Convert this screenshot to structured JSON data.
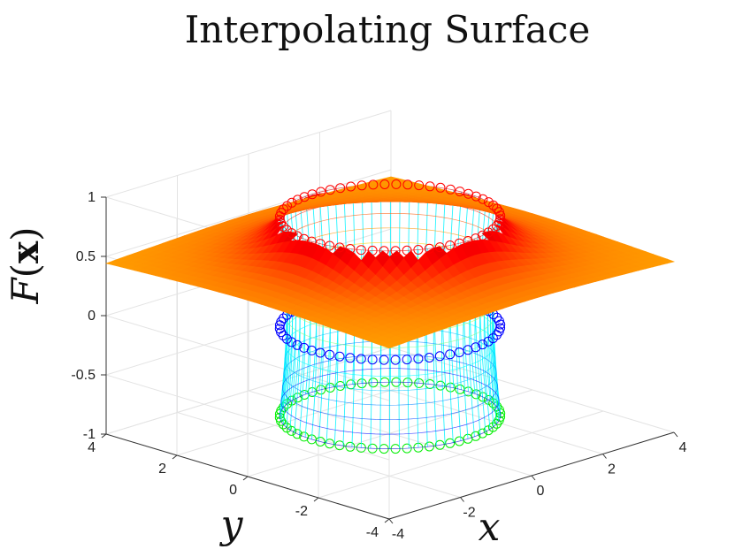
{
  "chart_data": {
    "type": "surface3d",
    "title": "Interpolating Surface",
    "xlabel": "x",
    "ylabel": "y",
    "zlabel": "F(x)",
    "zlabel_parts": {
      "fn": "F",
      "open": "(",
      "arg": "x",
      "close": ")"
    },
    "xlim": [
      -4,
      4
    ],
    "ylim": [
      -4,
      4
    ],
    "zlim": [
      -1,
      1
    ],
    "x_ticks": [
      -4,
      -2,
      0,
      2,
      4
    ],
    "y_ticks": [
      -4,
      -2,
      0,
      2,
      4
    ],
    "z_ticks": [
      -1,
      -0.5,
      0,
      0.5,
      1
    ],
    "x_tick_labels": [
      "-4",
      "-2",
      "0",
      "2",
      "4"
    ],
    "y_tick_labels": [
      "-4",
      "-2",
      "0",
      "2",
      "4"
    ],
    "z_tick_labels": [
      "-1",
      "-0.5",
      "0",
      "0.5",
      "1"
    ],
    "grid": true,
    "surface": {
      "outer_level": 0.5,
      "inner_level": -0.85,
      "rim_radius": 2.2,
      "colormap": "jet"
    },
    "circles": [
      {
        "name": "top",
        "radius": 2.2,
        "z": 0.82,
        "color": "#ff0000"
      },
      {
        "name": "middle",
        "radius": 2.2,
        "z": -0.1,
        "color": "#0000ff"
      },
      {
        "name": "bottom",
        "radius": 2.2,
        "z": -0.85,
        "color": "#00ee00"
      }
    ]
  }
}
